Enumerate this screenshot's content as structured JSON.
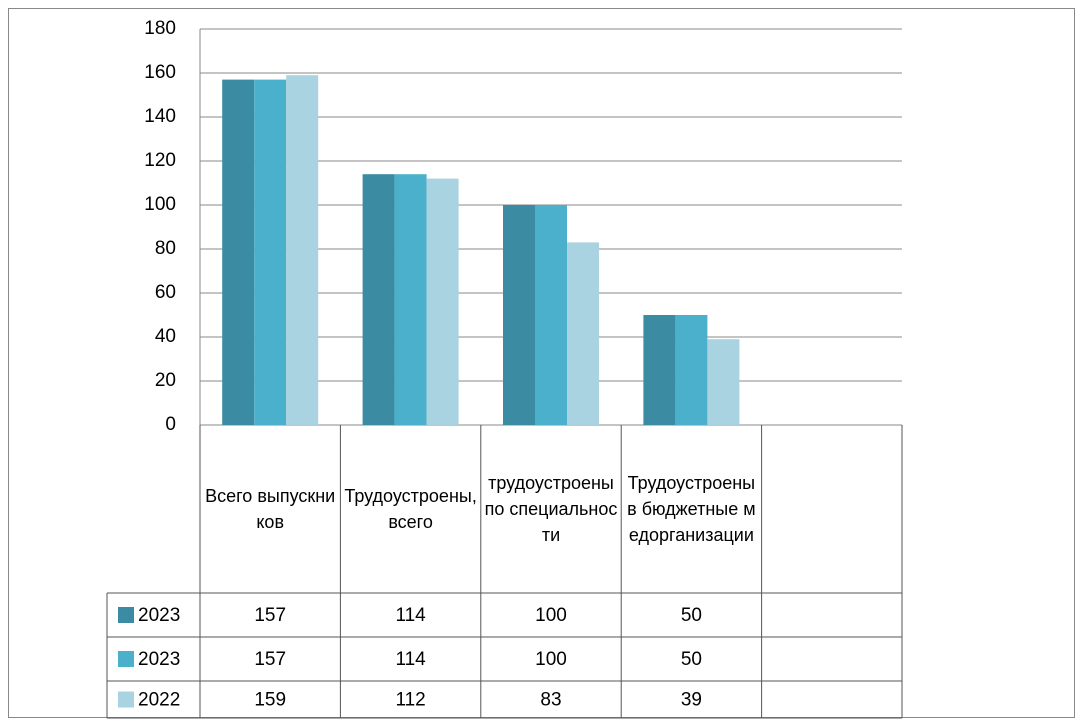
{
  "chart_data": {
    "type": "bar",
    "categories": [
      "Всего выпускников",
      "Трудоустроены, всего",
      "трудоустроены по специальности",
      "Трудоустроены в бюджетные медорганизации",
      null
    ],
    "series": [
      {
        "name": "2023",
        "color": "#3b8ca2",
        "values": [
          157,
          114,
          100,
          50,
          null
        ]
      },
      {
        "name": "2023",
        "color": "#4bb0cb",
        "values": [
          157,
          114,
          100,
          50,
          null
        ]
      },
      {
        "name": "2022",
        "color": "#a9d3e0",
        "values": [
          159,
          112,
          83,
          39,
          null
        ]
      }
    ],
    "ylim": [
      0,
      180
    ],
    "yticks": [
      0,
      20,
      40,
      60,
      80,
      100,
      120,
      140,
      160,
      180
    ],
    "grid": true
  }
}
